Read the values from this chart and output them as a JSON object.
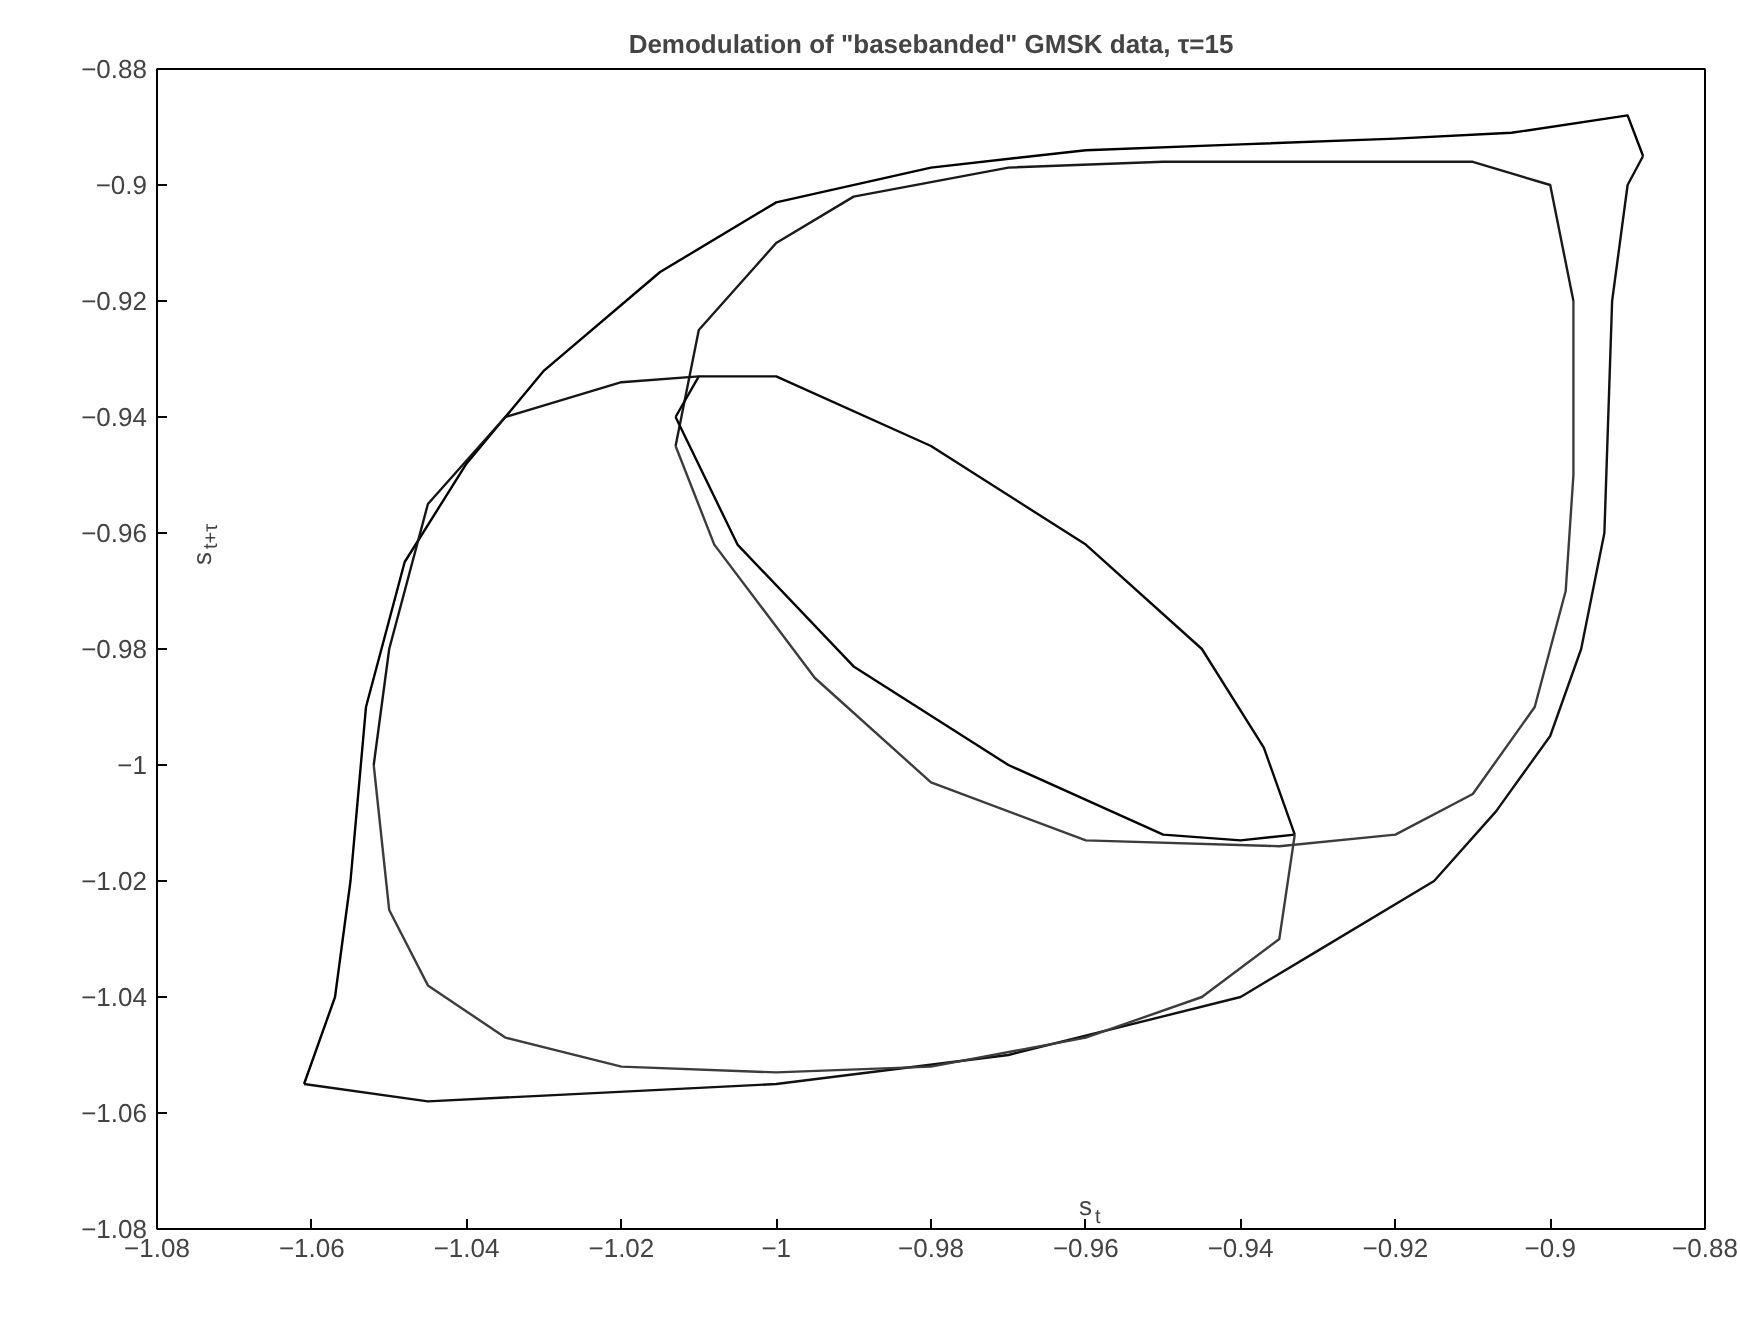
{
  "chart_data": {
    "type": "line",
    "title": "Demodulation of \"basebanded\" GMSK data, τ=15",
    "xlabel": "s$_{t}$",
    "ylabel": "s$_{t+τ}$",
    "xlim": [
      -1.08,
      -0.88
    ],
    "ylim": [
      -1.08,
      -0.88
    ],
    "xticks": [
      -1.08,
      -1.06,
      -1.04,
      -1.02,
      -1,
      -0.98,
      -0.96,
      -0.94,
      -0.92,
      -0.9,
      -0.88
    ],
    "yticks": [
      -1.08,
      -1.06,
      -1.04,
      -1.02,
      -1,
      -0.98,
      -0.96,
      -0.94,
      -0.92,
      -0.9,
      -0.88
    ],
    "grid": false,
    "marker": "none",
    "line_style": "solid",
    "series": [
      {
        "color": "#000000",
        "x": [
          -1.061,
          -1.057,
          -1.055,
          -1.053,
          -1.048,
          -1.04,
          -1.03,
          -1.015,
          -1.0,
          -0.98,
          -0.96,
          -0.94,
          -0.92,
          -0.905,
          -0.89,
          -0.888
        ],
        "values": [
          -1.055,
          -1.04,
          -1.02,
          -0.99,
          -0.965,
          -0.948,
          -0.932,
          -0.915,
          -0.903,
          -0.897,
          -0.894,
          -0.893,
          -0.892,
          -0.891,
          -0.888,
          -0.895
        ]
      },
      {
        "color": "#111111",
        "x": [
          -1.061,
          -1.045,
          -1.03,
          -1.0,
          -0.97,
          -0.94,
          -0.93,
          -0.915,
          -0.907,
          -0.9,
          -0.896,
          -0.893,
          -0.892,
          -0.89,
          -0.888
        ],
        "values": [
          -1.055,
          -1.058,
          -1.057,
          -1.055,
          -1.05,
          -1.04,
          -1.032,
          -1.02,
          -1.008,
          -0.995,
          -0.98,
          -0.96,
          -0.92,
          -0.9,
          -0.895
        ]
      },
      {
        "color": "#1a1a1a",
        "x": [
          -1.013,
          -1.01,
          -1.0,
          -0.99,
          -0.97,
          -0.95,
          -0.93,
          -0.91,
          -0.9,
          -0.897
        ],
        "values": [
          -0.945,
          -0.925,
          -0.91,
          -0.902,
          -0.897,
          -0.896,
          -0.896,
          -0.896,
          -0.9,
          -0.92
        ]
      },
      {
        "color": "#3c3c3c",
        "x": [
          -1.013,
          -1.008,
          -0.995,
          -0.98,
          -0.96,
          -0.935,
          -0.92,
          -0.91,
          -0.902,
          -0.898,
          -0.897,
          -0.897
        ],
        "values": [
          -0.945,
          -0.962,
          -0.985,
          -1.003,
          -1.013,
          -1.014,
          -1.012,
          -1.005,
          -0.99,
          -0.97,
          -0.95,
          -0.92
        ]
      },
      {
        "color": "#0a0a0a",
        "x": [
          -1.013,
          -1.01,
          -1.0,
          -0.98,
          -0.96,
          -0.945,
          -0.937,
          -0.933
        ],
        "values": [
          -0.94,
          -0.933,
          -0.933,
          -0.945,
          -0.962,
          -0.98,
          -0.997,
          -1.012
        ]
      },
      {
        "color": "#050505",
        "x": [
          -1.013,
          -1.005,
          -0.99,
          -0.97,
          -0.95,
          -0.94,
          -0.933
        ],
        "values": [
          -0.94,
          -0.962,
          -0.983,
          -1.0,
          -1.012,
          -1.013,
          -1.012
        ]
      },
      {
        "color": "#151515",
        "x": [
          -1.052,
          -1.05,
          -1.045,
          -1.035,
          -1.02,
          -1.01
        ],
        "values": [
          -1.0,
          -0.98,
          -0.955,
          -0.94,
          -0.934,
          -0.933
        ]
      },
      {
        "color": "#3c3c3c",
        "x": [
          -1.052,
          -1.05,
          -1.045,
          -1.035,
          -1.02,
          -1.0,
          -0.98,
          -0.96,
          -0.945,
          -0.935,
          -0.933
        ],
        "values": [
          -1.0,
          -1.025,
          -1.038,
          -1.047,
          -1.052,
          -1.053,
          -1.052,
          -1.047,
          -1.04,
          -1.03,
          -1.012
        ]
      }
    ]
  }
}
